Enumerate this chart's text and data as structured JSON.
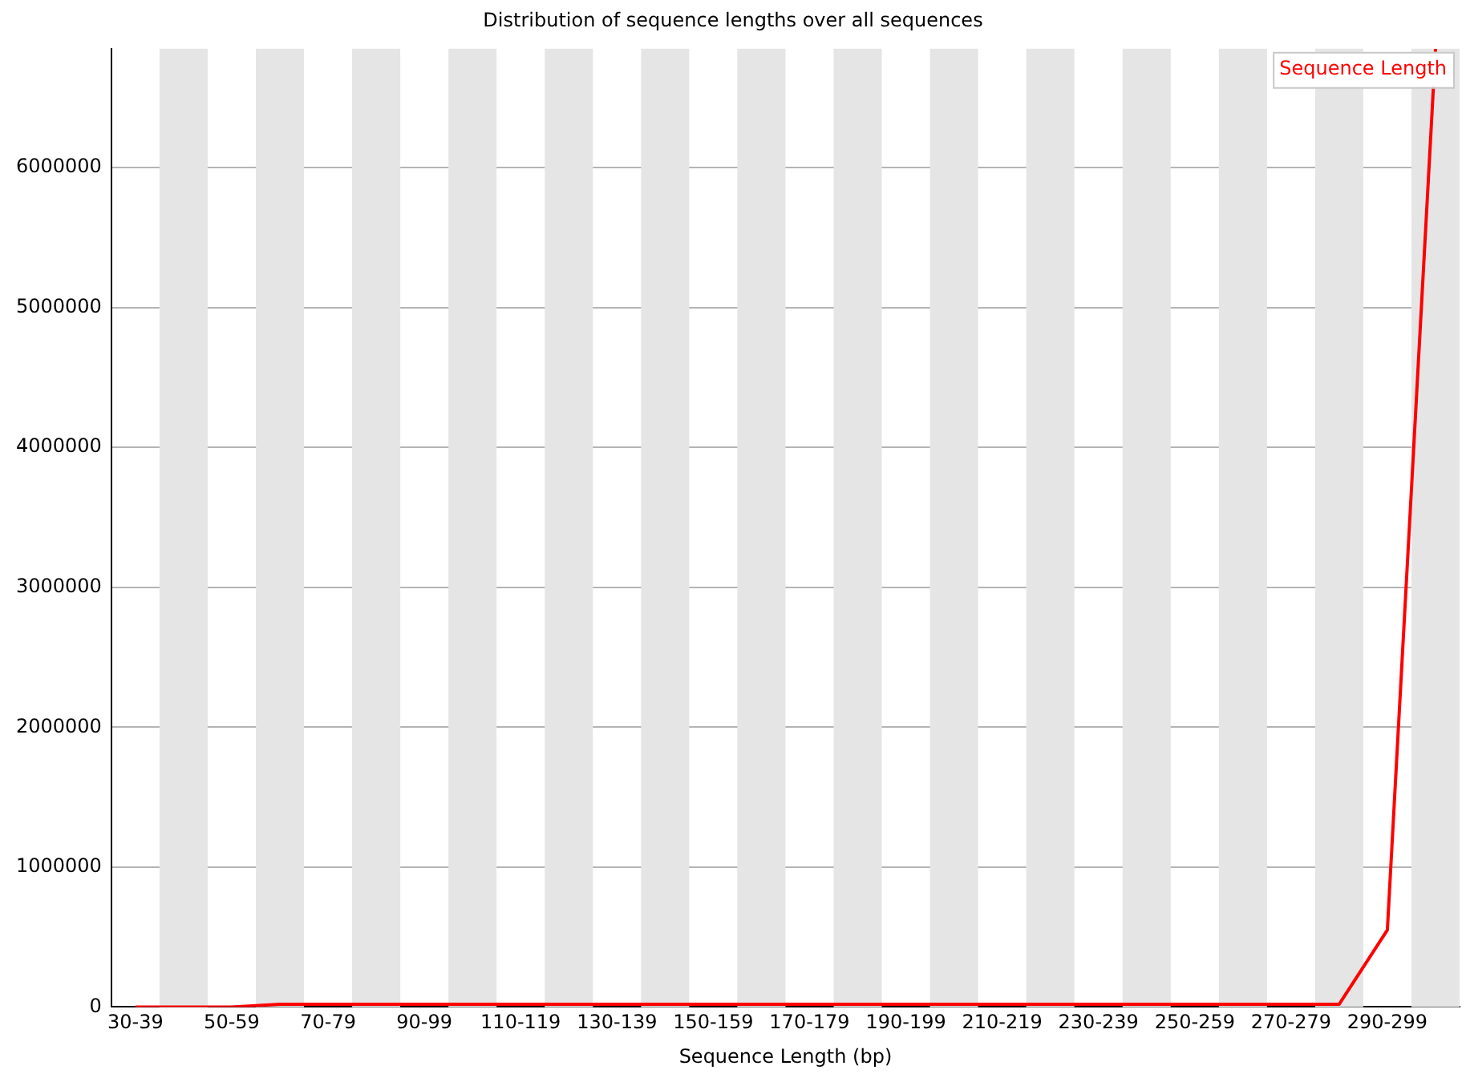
{
  "chart_data": {
    "type": "line",
    "title": "Distribution of sequence lengths over all sequences",
    "xlabel": "Sequence Length (bp)",
    "categories": [
      "30-39",
      null,
      "50-59",
      null,
      "70-79",
      null,
      "90-99",
      null,
      "110-119",
      null,
      "130-139",
      null,
      "150-159",
      null,
      "170-179",
      null,
      "190-199",
      null,
      "210-219",
      null,
      "230-239",
      null,
      "250-259",
      null,
      "270-279",
      null,
      "290-299",
      null
    ],
    "series": [
      {
        "name": "Sequence Length",
        "color": "#ff0000",
        "values": [
          0,
          0,
          0,
          20000,
          20000,
          20000,
          20000,
          20000,
          20000,
          20000,
          20000,
          20000,
          20000,
          20000,
          20000,
          20000,
          20000,
          20000,
          20000,
          20000,
          20000,
          20000,
          20000,
          20000,
          20000,
          20000,
          550000,
          6850000
        ]
      }
    ],
    "ylim": [
      0,
      6850000
    ],
    "yticks": [
      0,
      1000000,
      2000000,
      3000000,
      4000000,
      5000000,
      6000000
    ],
    "grid": "y",
    "legend": "top right",
    "marker": "none"
  }
}
